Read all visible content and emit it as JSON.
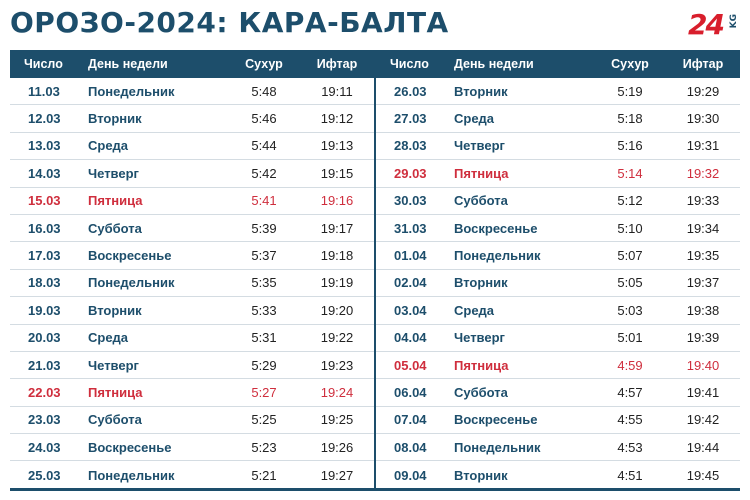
{
  "title": "ОРОЗО-2024: КАРА-БАЛТА",
  "logo": {
    "number": "24",
    "suffix": "KG"
  },
  "colors": {
    "header_bg": "#1d4e6b",
    "text_primary": "#1d4e6b",
    "highlight": "#cf2e3d"
  },
  "headers": {
    "date": "Число",
    "day": "День недели",
    "suhur": "Сухур",
    "iftar": "Ифтар"
  },
  "left_rows": [
    {
      "date": "11.03",
      "day": "Понедельник",
      "suhur": "5:48",
      "iftar": "19:11",
      "highlight": false
    },
    {
      "date": "12.03",
      "day": "Вторник",
      "suhur": "5:46",
      "iftar": "19:12",
      "highlight": false
    },
    {
      "date": "13.03",
      "day": "Среда",
      "suhur": "5:44",
      "iftar": "19:13",
      "highlight": false
    },
    {
      "date": "14.03",
      "day": "Четверг",
      "suhur": "5:42",
      "iftar": "19:15",
      "highlight": false
    },
    {
      "date": "15.03",
      "day": "Пятница",
      "suhur": "5:41",
      "iftar": "19:16",
      "highlight": true
    },
    {
      "date": "16.03",
      "day": "Суббота",
      "suhur": "5:39",
      "iftar": "19:17",
      "highlight": false
    },
    {
      "date": "17.03",
      "day": "Воскресенье",
      "suhur": "5:37",
      "iftar": "19:18",
      "highlight": false
    },
    {
      "date": "18.03",
      "day": "Понедельник",
      "suhur": "5:35",
      "iftar": "19:19",
      "highlight": false
    },
    {
      "date": "19.03",
      "day": "Вторник",
      "suhur": "5:33",
      "iftar": "19:20",
      "highlight": false
    },
    {
      "date": "20.03",
      "day": "Среда",
      "suhur": "5:31",
      "iftar": "19:22",
      "highlight": false
    },
    {
      "date": "21.03",
      "day": "Четверг",
      "suhur": "5:29",
      "iftar": "19:23",
      "highlight": false
    },
    {
      "date": "22.03",
      "day": "Пятница",
      "suhur": "5:27",
      "iftar": "19:24",
      "highlight": true
    },
    {
      "date": "23.03",
      "day": "Суббота",
      "suhur": "5:25",
      "iftar": "19:25",
      "highlight": false
    },
    {
      "date": "24.03",
      "day": "Воскресенье",
      "suhur": "5:23",
      "iftar": "19:26",
      "highlight": false
    },
    {
      "date": "25.03",
      "day": "Понедельник",
      "suhur": "5:21",
      "iftar": "19:27",
      "highlight": false
    }
  ],
  "right_rows": [
    {
      "date": "26.03",
      "day": "Вторник",
      "suhur": "5:19",
      "iftar": "19:29",
      "highlight": false
    },
    {
      "date": "27.03",
      "day": "Среда",
      "suhur": "5:18",
      "iftar": "19:30",
      "highlight": false
    },
    {
      "date": "28.03",
      "day": "Четверг",
      "suhur": "5:16",
      "iftar": "19:31",
      "highlight": false
    },
    {
      "date": "29.03",
      "day": "Пятница",
      "suhur": "5:14",
      "iftar": "19:32",
      "highlight": true
    },
    {
      "date": "30.03",
      "day": "Суббота",
      "suhur": "5:12",
      "iftar": "19:33",
      "highlight": false
    },
    {
      "date": "31.03",
      "day": "Воскресенье",
      "suhur": "5:10",
      "iftar": "19:34",
      "highlight": false
    },
    {
      "date": "01.04",
      "day": "Понедельник",
      "suhur": "5:07",
      "iftar": "19:35",
      "highlight": false
    },
    {
      "date": "02.04",
      "day": "Вторник",
      "suhur": "5:05",
      "iftar": "19:37",
      "highlight": false
    },
    {
      "date": "03.04",
      "day": "Среда",
      "suhur": "5:03",
      "iftar": "19:38",
      "highlight": false
    },
    {
      "date": "04.04",
      "day": "Четверг",
      "suhur": "5:01",
      "iftar": "19:39",
      "highlight": false
    },
    {
      "date": "05.04",
      "day": "Пятница",
      "suhur": "4:59",
      "iftar": "19:40",
      "highlight": true
    },
    {
      "date": "06.04",
      "day": "Суббота",
      "suhur": "4:57",
      "iftar": "19:41",
      "highlight": false
    },
    {
      "date": "07.04",
      "day": "Воскресенье",
      "suhur": "4:55",
      "iftar": "19:42",
      "highlight": false
    },
    {
      "date": "08.04",
      "day": "Понедельник",
      "suhur": "4:53",
      "iftar": "19:44",
      "highlight": false
    },
    {
      "date": "09.04",
      "day": "Вторник",
      "suhur": "4:51",
      "iftar": "19:45",
      "highlight": false
    }
  ]
}
